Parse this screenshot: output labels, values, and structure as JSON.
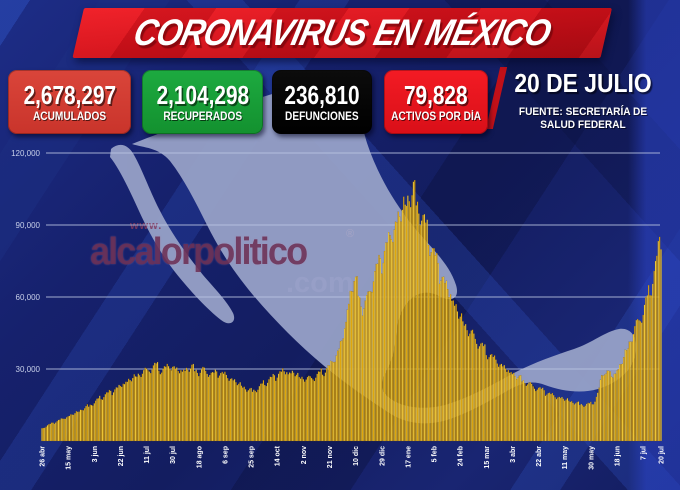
{
  "title_banner": {
    "title": "CORONAVIRUS EN MÉXICO"
  },
  "stats": [
    {
      "value": "2,678,297",
      "label": "ACUMULADOS"
    },
    {
      "value": "2,104,298",
      "label": "RECUPERADOS"
    },
    {
      "value": "236,810",
      "label": "DEFUNCIONES"
    },
    {
      "value": "79,828",
      "label": "ACTIVOS POR DÍA"
    }
  ],
  "date_block": {
    "date": "20 DE JULIO",
    "source_line1": "FUENTE: SECRETARÍA DE",
    "source_line2": "SALUD FEDERAL"
  },
  "watermark": {
    "www": "www.",
    "name": "alcalorpolitico",
    "registered": "®",
    "com": ".com"
  },
  "colors": {
    "background_navy": "#16216d",
    "map_fill": "#97a1c7",
    "bar_gold_bright": "#ffd83f",
    "bar_gold_dark": "#f0b50f",
    "grid_line": "#bcc6e2",
    "axis_label": "#c7cfe9",
    "banner_red": "#d6121b",
    "box_red": "#cf3a30",
    "box_green": "#17a23b",
    "box_black": "#000000",
    "box_bright_red": "#ed1a23"
  },
  "chart_data": {
    "type": "bar",
    "title": "Activos por día (26 abr 2020 – 20 jul 2021)",
    "xlabel": "",
    "ylabel": "",
    "ylim": [
      0,
      124000
    ],
    "grid": true,
    "total_days": 451,
    "yticks": [
      {
        "label": "120,000",
        "value": 120000
      },
      {
        "label": "90,000",
        "value": 90000
      },
      {
        "label": "60,000",
        "value": 60000
      },
      {
        "label": "30,000",
        "value": 30000
      }
    ],
    "x_tick_labels": [
      {
        "label": "26 abr",
        "day": 0
      },
      {
        "label": "15 may",
        "day": 19
      },
      {
        "label": "3 jun",
        "day": 38
      },
      {
        "label": "22 jun",
        "day": 57
      },
      {
        "label": "11 jul",
        "day": 76
      },
      {
        "label": "30 jul",
        "day": 95
      },
      {
        "label": "18 ago",
        "day": 114
      },
      {
        "label": "6 sep",
        "day": 133
      },
      {
        "label": "25 sep",
        "day": 152
      },
      {
        "label": "14 oct",
        "day": 171
      },
      {
        "label": "2 nov",
        "day": 190
      },
      {
        "label": "21 nov",
        "day": 209
      },
      {
        "label": "10 dic",
        "day": 228
      },
      {
        "label": "29 dic",
        "day": 247
      },
      {
        "label": "17 ene",
        "day": 266
      },
      {
        "label": "5 feb",
        "day": 285
      },
      {
        "label": "24 feb",
        "day": 304
      },
      {
        "label": "15 mar",
        "day": 323
      },
      {
        "label": "3 abr",
        "day": 342
      },
      {
        "label": "22 abr",
        "day": 361
      },
      {
        "label": "11 may",
        "day": 380
      },
      {
        "label": "30 may",
        "day": 399
      },
      {
        "label": "18 jun",
        "day": 418
      },
      {
        "label": "7 jul",
        "day": 437
      },
      {
        "label": "20 jul",
        "day": 450
      }
    ],
    "keypoints": [
      [
        0,
        5500
      ],
      [
        6,
        7200
      ],
      [
        12,
        8800
      ],
      [
        19,
        10500
      ],
      [
        26,
        12500
      ],
      [
        32,
        14500
      ],
      [
        38,
        16500
      ],
      [
        45,
        19500
      ],
      [
        51,
        21500
      ],
      [
        57,
        23500
      ],
      [
        63,
        26000
      ],
      [
        70,
        28500
      ],
      [
        76,
        30000
      ],
      [
        80,
        31500
      ],
      [
        83,
        32500
      ],
      [
        87,
        30500
      ],
      [
        90,
        31500
      ],
      [
        95,
        32000
      ],
      [
        99,
        30000
      ],
      [
        104,
        30500
      ],
      [
        109,
        31500
      ],
      [
        114,
        29500
      ],
      [
        118,
        30500
      ],
      [
        124,
        28500
      ],
      [
        128,
        29500
      ],
      [
        133,
        28500
      ],
      [
        138,
        26500
      ],
      [
        143,
        24500
      ],
      [
        148,
        22500
      ],
      [
        152,
        21500
      ],
      [
        157,
        22500
      ],
      [
        162,
        25000
      ],
      [
        167,
        27000
      ],
      [
        171,
        28500
      ],
      [
        175,
        30000
      ],
      [
        179,
        29000
      ],
      [
        183,
        29500
      ],
      [
        187,
        27500
      ],
      [
        190,
        27000
      ],
      [
        194,
        26500
      ],
      [
        198,
        27500
      ],
      [
        202,
        29000
      ],
      [
        206,
        30500
      ],
      [
        209,
        32000
      ],
      [
        212,
        34500
      ],
      [
        215,
        38000
      ],
      [
        218,
        43000
      ],
      [
        220,
        48000
      ],
      [
        222,
        56000
      ],
      [
        224,
        63000
      ],
      [
        227,
        69000
      ],
      [
        229,
        66500
      ],
      [
        231,
        61000
      ],
      [
        233,
        57000
      ],
      [
        236,
        59500
      ],
      [
        238,
        64500
      ],
      [
        241,
        70500
      ],
      [
        244,
        74500
      ],
      [
        247,
        78000
      ],
      [
        250,
        83000
      ],
      [
        253,
        87500
      ],
      [
        256,
        91500
      ],
      [
        259,
        95500
      ],
      [
        262,
        99000
      ],
      [
        265,
        102500
      ],
      [
        268,
        105500
      ],
      [
        270,
        107500
      ],
      [
        272,
        104000
      ],
      [
        275,
        98500
      ],
      [
        278,
        93000
      ],
      [
        281,
        87500
      ],
      [
        285,
        80000
      ],
      [
        289,
        73500
      ],
      [
        293,
        67500
      ],
      [
        298,
        61000
      ],
      [
        304,
        53500
      ],
      [
        310,
        47500
      ],
      [
        316,
        43000
      ],
      [
        323,
        38500
      ],
      [
        330,
        34500
      ],
      [
        336,
        31500
      ],
      [
        342,
        29000
      ],
      [
        348,
        26500
      ],
      [
        355,
        24000
      ],
      [
        361,
        22500
      ],
      [
        368,
        20500
      ],
      [
        374,
        19000
      ],
      [
        380,
        18000
      ],
      [
        385,
        16800
      ],
      [
        390,
        16000
      ],
      [
        395,
        15500
      ],
      [
        399,
        15800
      ],
      [
        402,
        17500
      ],
      [
        404,
        20000
      ],
      [
        406,
        25000
      ],
      [
        408,
        30500
      ],
      [
        410,
        29000
      ],
      [
        412,
        30000
      ],
      [
        414,
        27500
      ],
      [
        416,
        28500
      ],
      [
        418,
        30000
      ],
      [
        420,
        32000
      ],
      [
        422,
        34500
      ],
      [
        424,
        37500
      ],
      [
        427,
        42000
      ],
      [
        430,
        46500
      ],
      [
        433,
        50500
      ],
      [
        437,
        55500
      ],
      [
        440,
        61000
      ],
      [
        443,
        67500
      ],
      [
        446,
        75000
      ],
      [
        448,
        82000
      ],
      [
        449,
        86500
      ],
      [
        450,
        79828
      ]
    ],
    "weekly_pattern": [
      1.0,
      0.96,
      0.92,
      0.95,
      0.985,
      1.0,
      0.975
    ]
  }
}
